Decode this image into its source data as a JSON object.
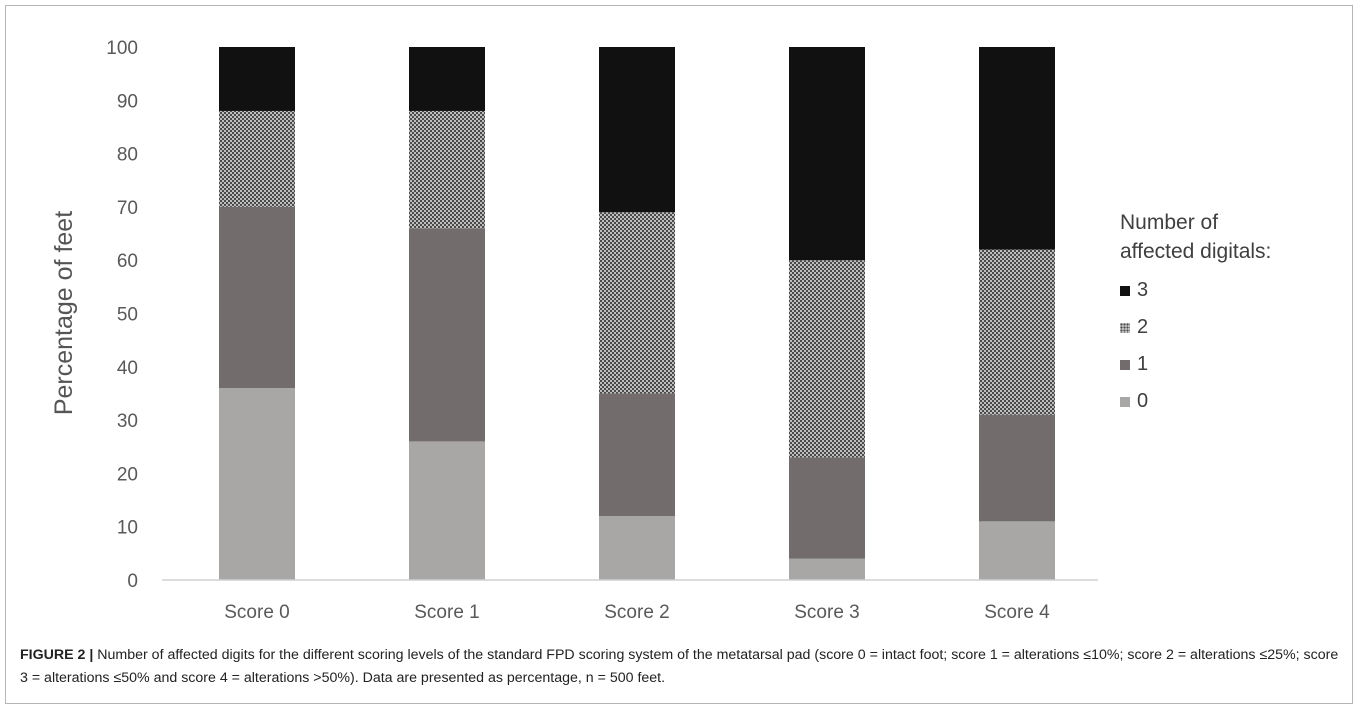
{
  "chart_data": {
    "type": "bar",
    "stacked": true,
    "title": "",
    "xlabel": "",
    "ylabel": "Percentage of feet",
    "ylim": [
      0,
      100
    ],
    "yticks": [
      0,
      10,
      20,
      30,
      40,
      50,
      60,
      70,
      80,
      90,
      100
    ],
    "categories": [
      "Score 0",
      "Score 1",
      "Score 2",
      "Score 3",
      "Score 4"
    ],
    "series": [
      {
        "name": "0",
        "values": [
          36,
          26,
          12,
          4,
          11
        ],
        "color": "#a9a6a6"
      },
      {
        "name": "1",
        "values": [
          34,
          40,
          23,
          19,
          20
        ],
        "color": "#726c6c"
      },
      {
        "name": "2",
        "values": [
          18,
          22,
          34,
          37,
          31
        ],
        "color": "#9f9f9f",
        "pattern": "dotted"
      },
      {
        "name": "3",
        "values": [
          12,
          12,
          31,
          40,
          38
        ],
        "color": "#111111"
      }
    ],
    "legend": {
      "title_lines": [
        "Number of",
        "affected digitals:"
      ],
      "placement": "right",
      "order": [
        "3",
        "2",
        "1",
        "0"
      ]
    },
    "grid": false
  },
  "caption": {
    "label": "FIGURE 2 |",
    "text": " Number of affected digits for the different scoring levels of the standard FPD scoring system of the metatarsal pad (score 0 = intact foot; score 1 = alterations ≤10%; score 2 = alterations ≤25%; score 3 = alterations ≤50% and score 4 = alterations >50%). Data are presented as percentage, n = 500 feet."
  }
}
